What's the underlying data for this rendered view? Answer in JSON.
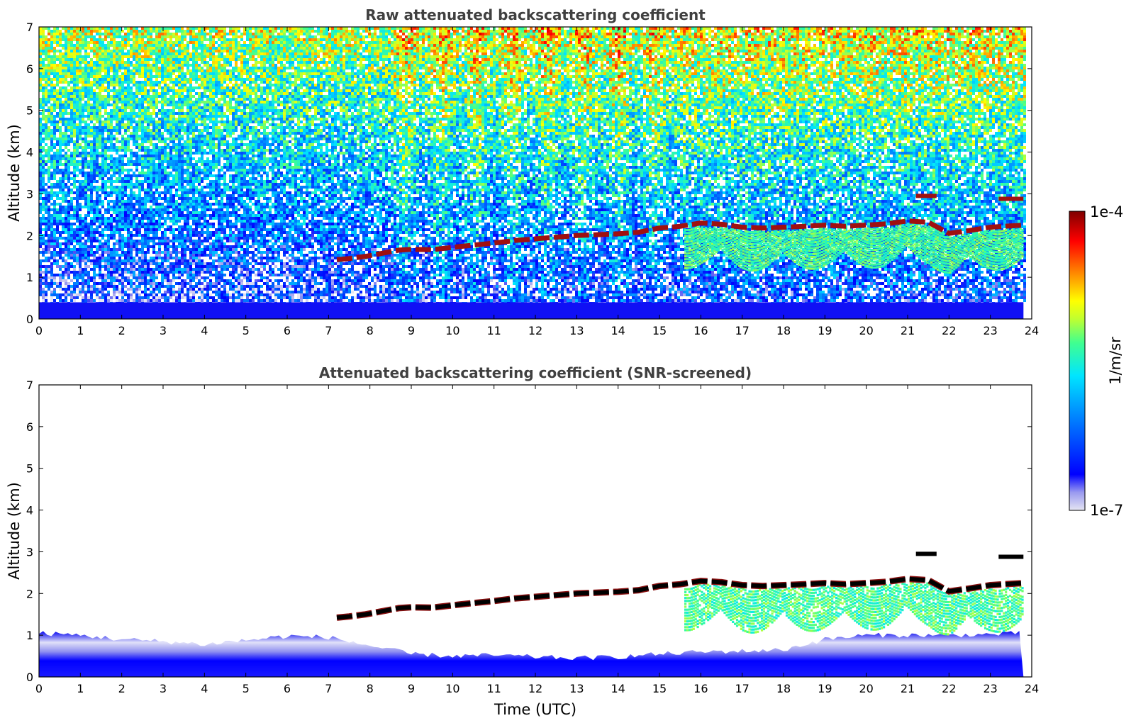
{
  "chart_data": [
    {
      "type": "heatmap",
      "title": "Raw attenuated backscattering coefficient",
      "xlabel": "",
      "ylabel": "Altitude (km)",
      "xlim": [
        0,
        24
      ],
      "ylim": [
        0,
        7
      ],
      "x_ticks": [
        0,
        1,
        2,
        3,
        4,
        5,
        6,
        7,
        8,
        9,
        10,
        11,
        12,
        13,
        14,
        15,
        16,
        17,
        18,
        19,
        20,
        21,
        22,
        23,
        24
      ],
      "y_ticks": [
        0,
        1,
        2,
        3,
        4,
        5,
        6,
        7
      ],
      "data_extent_x": [
        0,
        23.8
      ],
      "color_scale": "log",
      "cloud_base_km": [
        [
          7.2,
          1.42
        ],
        [
          7.5,
          1.45
        ],
        [
          7.9,
          1.5
        ],
        [
          8.7,
          1.65
        ],
        [
          9.0,
          1.67
        ],
        [
          9.5,
          1.66
        ],
        [
          10.2,
          1.74
        ],
        [
          10.6,
          1.78
        ],
        [
          11.0,
          1.82
        ],
        [
          11.5,
          1.88
        ],
        [
          12.0,
          1.92
        ],
        [
          12.5,
          1.96
        ],
        [
          13.0,
          2.0
        ],
        [
          13.5,
          2.02
        ],
        [
          14.0,
          2.04
        ],
        [
          14.5,
          2.08
        ],
        [
          15.0,
          2.18
        ],
        [
          15.5,
          2.22
        ],
        [
          16.0,
          2.3
        ],
        [
          16.5,
          2.27
        ],
        [
          17.0,
          2.2
        ],
        [
          17.5,
          2.18
        ],
        [
          18.0,
          2.2
        ],
        [
          18.5,
          2.22
        ],
        [
          19.0,
          2.25
        ],
        [
          19.5,
          2.22
        ],
        [
          20.0,
          2.25
        ],
        [
          20.5,
          2.28
        ],
        [
          21.0,
          2.35
        ],
        [
          21.5,
          2.32
        ],
        [
          22.0,
          2.05
        ],
        [
          22.5,
          2.12
        ],
        [
          23.0,
          2.2
        ],
        [
          23.8,
          2.25
        ]
      ],
      "upper_layer_km": [
        [
          21.2,
          2.95
        ],
        [
          21.7,
          2.95
        ],
        [
          23.2,
          2.88
        ],
        [
          23.8,
          2.88
        ]
      ]
    },
    {
      "type": "heatmap",
      "title": "Attenuated backscattering coefficient (SNR-screened)",
      "xlabel": "Time (UTC)",
      "ylabel": "Altitude (km)",
      "xlim": [
        0,
        24
      ],
      "ylim": [
        0,
        7
      ],
      "x_ticks": [
        0,
        1,
        2,
        3,
        4,
        5,
        6,
        7,
        8,
        9,
        10,
        11,
        12,
        13,
        14,
        15,
        16,
        17,
        18,
        19,
        20,
        21,
        22,
        23,
        24
      ],
      "y_ticks": [
        0,
        1,
        2,
        3,
        4,
        5,
        6,
        7
      ],
      "data_extent_x": [
        0,
        23.8
      ],
      "boundary_layer_top_km": [
        [
          0,
          1.05
        ],
        [
          1,
          1.0
        ],
        [
          2,
          0.9
        ],
        [
          3,
          0.85
        ],
        [
          4,
          0.78
        ],
        [
          5,
          0.88
        ],
        [
          6,
          0.98
        ],
        [
          7,
          0.95
        ],
        [
          8,
          0.75
        ],
        [
          9,
          0.55
        ],
        [
          10,
          0.5
        ],
        [
          11,
          0.52
        ],
        [
          12,
          0.48
        ],
        [
          13,
          0.45
        ],
        [
          14,
          0.48
        ],
        [
          15,
          0.55
        ],
        [
          16,
          0.6
        ],
        [
          17,
          0.62
        ],
        [
          18,
          0.65
        ],
        [
          19,
          0.9
        ],
        [
          20,
          1.0
        ],
        [
          21,
          1.0
        ],
        [
          22,
          1.0
        ],
        [
          23,
          1.02
        ],
        [
          23.8,
          1.05
        ]
      ]
    }
  ],
  "colorbar": {
    "label": "1/m/sr",
    "max_label": "1e-4",
    "min_label": "1e-7",
    "colormap": "jet-like with light low end",
    "colors": [
      "#e6e6f2",
      "#0000ff",
      "#00a0ff",
      "#00e5ff",
      "#40ff90",
      "#c0ff30",
      "#ffff00",
      "#ff8000",
      "#ff0000",
      "#800000"
    ]
  }
}
